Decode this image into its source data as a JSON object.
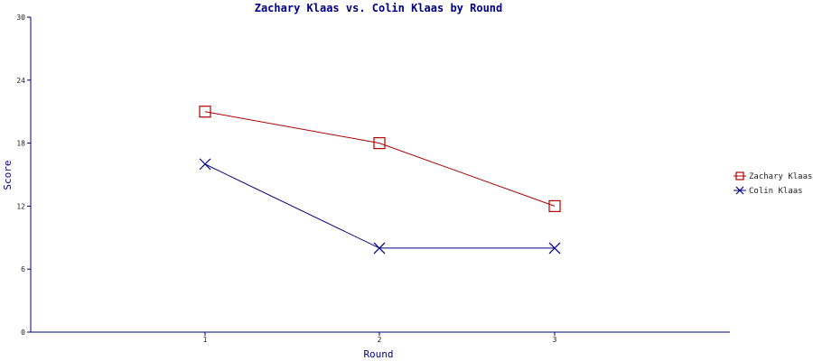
{
  "chart_data": {
    "type": "line",
    "title": "Zachary Klaas vs. Colin Klaas by Round",
    "xlabel": "Round",
    "ylabel": "Score",
    "categories": [
      "1",
      "2",
      "3"
    ],
    "ylim": [
      0,
      30
    ],
    "yticks": [
      0,
      6,
      12,
      18,
      24,
      30
    ],
    "grid": false,
    "legend_position": "right",
    "series": [
      {
        "name": "Zachary Klaas",
        "values": [
          21,
          18,
          12
        ],
        "color": "#b00000",
        "marker": "square"
      },
      {
        "name": "Colin Klaas",
        "values": [
          16,
          8,
          8
        ],
        "color": "#000080",
        "marker": "x"
      }
    ],
    "colors": {
      "axis": "#000080",
      "title": "#000080",
      "text": "#222222"
    }
  }
}
